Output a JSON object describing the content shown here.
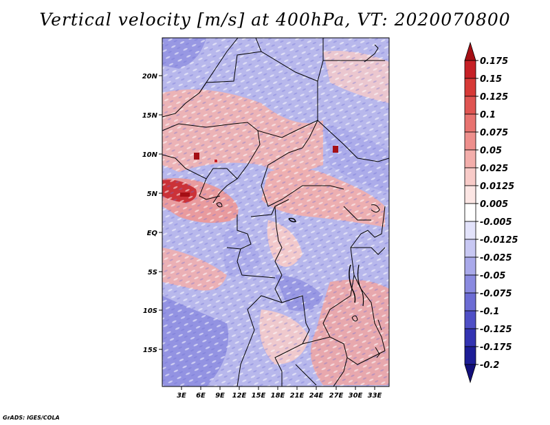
{
  "title": "Vertical velocity [m/s] at 400hPa, VT: 2020070800",
  "credit": "GrADS: IGES/COLA",
  "map": {
    "lat_labels": [
      "20N",
      "15N",
      "10N",
      "5N",
      "EQ",
      "5S",
      "10S",
      "15S"
    ],
    "lon_labels": [
      "3E",
      "6E",
      "9E",
      "12E",
      "15E",
      "18E",
      "21E",
      "24E",
      "27E",
      "30E",
      "33E"
    ]
  },
  "colorbar": {
    "labels": [
      "0.175",
      "0.15",
      "0.125",
      "0.1",
      "0.075",
      "0.05",
      "0.025",
      "0.0125",
      "0.005",
      "-0.005",
      "-0.0125",
      "-0.025",
      "-0.05",
      "-0.075",
      "-0.1",
      "-0.125",
      "-0.175",
      "-0.2"
    ],
    "colors": [
      "#a50f15",
      "#c62026",
      "#d73a37",
      "#e05552",
      "#e87370",
      "#ee8f8c",
      "#f3aeab",
      "#f8cbc8",
      "#fce6e4",
      "#ffffff",
      "#e3e3fb",
      "#c8c8f3",
      "#a9a9ea",
      "#8a8ae0",
      "#6c6cd4",
      "#4f4fc6",
      "#3333b2",
      "#1d1d96",
      "#120f7a"
    ]
  }
}
